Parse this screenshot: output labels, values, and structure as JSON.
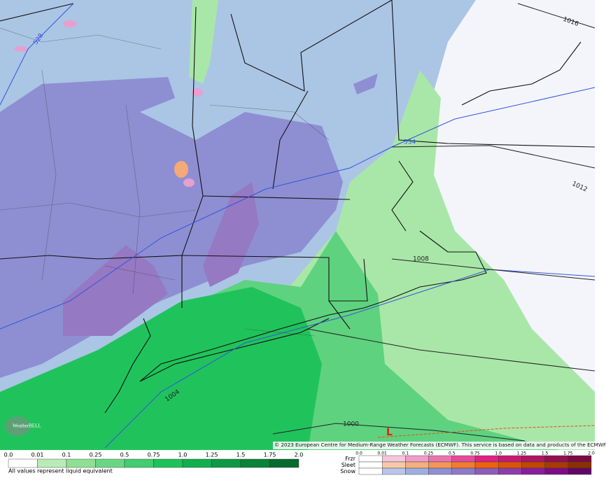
{
  "map": {
    "contour_labels": [
      "528",
      "534",
      "1016",
      "1012",
      "1008",
      "1004",
      "1000"
    ],
    "low_label": "L"
  },
  "credit": "© 2023 European Centre for Medium-Range Weather Forecasts (ECMWF). This service is based on data and products of the ECMWF.",
  "logo": "WeatherBELL",
  "legend": {
    "rain_ticks": [
      "0.0",
      "0.01",
      "0.1",
      "0.25",
      "0.5",
      "0.75",
      "1.0",
      "1.25",
      "1.5",
      "1.75",
      "2.0"
    ],
    "note": "All values represent liquid equivalent",
    "mixed_ticks": [
      "0.0",
      "0.01",
      "0.1",
      "0.25",
      "0.5",
      "0.75",
      "1.0",
      "1.25",
      "1.5",
      "1.75",
      "2.0"
    ],
    "rows": [
      "Frzr",
      "Sleet",
      "Snow"
    ]
  }
}
